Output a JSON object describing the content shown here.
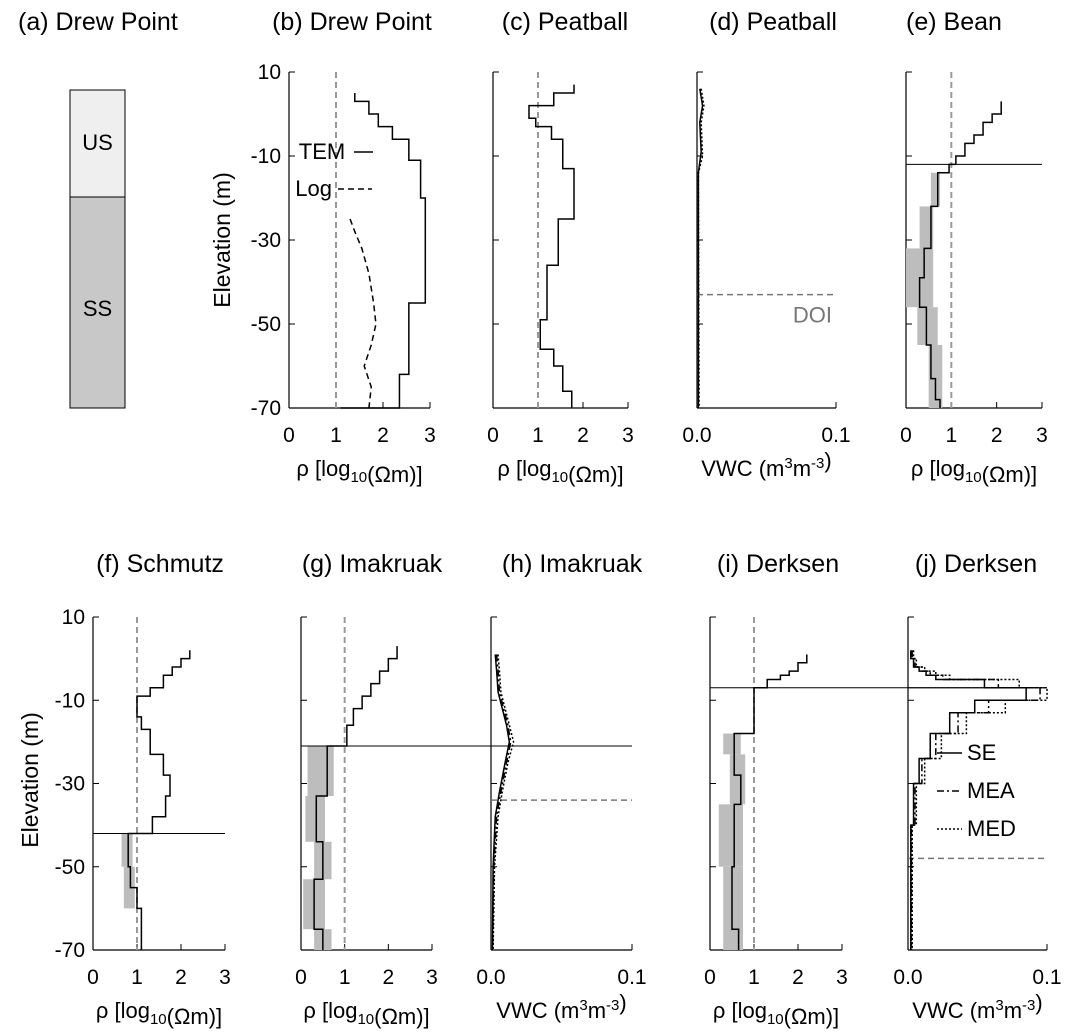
{
  "figure": {
    "ylabel": "Elevation (m)",
    "rho_label": "ρ [log10(Ωm)]",
    "vwc_label": "VWC (m3m-3)",
    "y_ticks": [
      "10",
      "-10",
      "-30",
      "-50",
      "-70"
    ],
    "rho_ticks": [
      "0",
      "1",
      "2",
      "3"
    ],
    "vwc_ticks": [
      "0.0",
      "0.1"
    ]
  },
  "chart_data": [
    {
      "panel": "(a)",
      "title": "(a) Drew Point",
      "type": "stratigraphy-column",
      "units": [
        {
          "label": "US",
          "color": "#efefef"
        },
        {
          "label": "SS",
          "color": "#c8c8c8"
        }
      ],
      "boundary_elevation": -15
    },
    {
      "panel": "(b)",
      "title": "(b) Drew Point",
      "type": "line",
      "kind": "rho",
      "xlabel": "ρ [log10(Ωm)]",
      "ylabel": "Elevation (m)",
      "xlim": [
        0,
        3
      ],
      "ylim": [
        -70,
        10
      ],
      "vref": 1,
      "legend": [
        {
          "name": "TEM",
          "style": "solid"
        },
        {
          "name": "Log",
          "style": "dashed"
        }
      ],
      "series": [
        {
          "name": "TEM",
          "style": "step",
          "x": [
            1.4,
            1.7,
            1.9,
            2.2,
            2.55,
            2.8,
            2.9,
            2.55,
            2.35,
            1.1
          ],
          "breaks": [
            5,
            3,
            0,
            -3,
            -6,
            -11,
            -20,
            -45,
            -62,
            -70
          ]
        },
        {
          "name": "Log",
          "style": "dashed",
          "points": [
            [
              1.3,
              -25
            ],
            [
              1.4,
              -28
            ],
            [
              1.55,
              -32
            ],
            [
              1.7,
              -38
            ],
            [
              1.8,
              -45
            ],
            [
              1.85,
              -50
            ],
            [
              1.75,
              -55
            ],
            [
              1.6,
              -60
            ],
            [
              1.75,
              -65
            ],
            [
              1.7,
              -70
            ]
          ]
        }
      ]
    },
    {
      "panel": "(c)",
      "title": "(c) Peatball",
      "type": "line",
      "kind": "rho",
      "xlim": [
        0,
        3
      ],
      "ylim": [
        -70,
        10
      ],
      "vref": 1,
      "series": [
        {
          "name": "TEM",
          "style": "step",
          "x": [
            1.8,
            1.35,
            0.8,
            0.95,
            1.3,
            1.55,
            1.8,
            1.45,
            1.2,
            1.05,
            1.35,
            1.55,
            1.75
          ],
          "breaks": [
            7,
            5,
            2,
            -1,
            -3,
            -6,
            -13,
            -25,
            -36,
            -49,
            -56,
            -60,
            -66,
            -70
          ]
        }
      ]
    },
    {
      "panel": "(d)",
      "title": "(d) Peatball",
      "type": "line",
      "kind": "vwc",
      "xlim": [
        0,
        0.1
      ],
      "ylim": [
        -70,
        10
      ],
      "annotations": [
        {
          "text": "DOI",
          "elevation": -43
        }
      ],
      "series": [
        {
          "name": "SE",
          "style": "solid",
          "points": [
            [
              0.002,
              6
            ],
            [
              0.004,
              2
            ],
            [
              0.002,
              -2
            ],
            [
              0.003,
              -9
            ],
            [
              0.001,
              -14
            ],
            [
              0.001,
              -70
            ]
          ]
        },
        {
          "name": "MED",
          "style": "dotted",
          "points": [
            [
              0.003,
              6
            ],
            [
              0.005,
              2
            ],
            [
              0.003,
              -2
            ],
            [
              0.004,
              -10
            ],
            [
              0.001,
              -14
            ],
            [
              0.0015,
              -70
            ]
          ]
        }
      ]
    },
    {
      "panel": "(e)",
      "title": "(e) Bean",
      "type": "line",
      "kind": "rho",
      "xlim": [
        0,
        3
      ],
      "ylim": [
        -70,
        10
      ],
      "vref": 1,
      "hline": -12,
      "series": [
        {
          "name": "TEM",
          "style": "step",
          "x": [
            2.1,
            1.9,
            1.7,
            1.5,
            1.3,
            1.1,
            0.95,
            0.7,
            0.55,
            0.4,
            0.3,
            0.45,
            0.55,
            0.65,
            0.75
          ],
          "breaks": [
            3,
            0,
            -2,
            -5,
            -7,
            -10,
            -12,
            -14,
            -22,
            -32,
            -39,
            -46,
            -55,
            -63,
            -68,
            -70
          ]
        }
      ],
      "uncertainty": [
        {
          "x1": 0.55,
          "x2": 0.75,
          "top": -14,
          "bottom": -22
        },
        {
          "x1": 0.3,
          "x2": 0.6,
          "top": -22,
          "bottom": -32
        },
        {
          "x1": 0.0,
          "x2": 0.6,
          "top": -32,
          "bottom": -46
        },
        {
          "x1": 0.25,
          "x2": 0.7,
          "top": -46,
          "bottom": -55
        },
        {
          "x1": 0.5,
          "x2": 0.8,
          "top": -55,
          "bottom": -70
        }
      ]
    },
    {
      "panel": "(f)",
      "title": "(f) Schmutz",
      "type": "line",
      "kind": "rho",
      "xlim": [
        0,
        3
      ],
      "ylim": [
        -70,
        10
      ],
      "vref": 1,
      "hline": -42,
      "series": [
        {
          "name": "TEM",
          "style": "step",
          "x": [
            2.2,
            2.0,
            1.8,
            1.6,
            1.3,
            1.0,
            1.1,
            1.3,
            1.6,
            1.75,
            1.65,
            1.35,
            0.8,
            0.85,
            1.0,
            1.1
          ],
          "breaks": [
            2,
            0,
            -2,
            -4,
            -7,
            -9,
            -14,
            -17,
            -23,
            -28,
            -33,
            -38,
            -42,
            -50,
            -55,
            -60,
            -70
          ]
        }
      ],
      "uncertainty": [
        {
          "x1": 0.65,
          "x2": 0.9,
          "top": -42,
          "bottom": -50
        },
        {
          "x1": 0.7,
          "x2": 0.95,
          "top": -50,
          "bottom": -60
        }
      ]
    },
    {
      "panel": "(g)",
      "title": "(g) Imakruak",
      "type": "line",
      "kind": "rho",
      "xlim": [
        0,
        3
      ],
      "ylim": [
        -70,
        10
      ],
      "vref": 1,
      "hline": -21,
      "series": [
        {
          "name": "TEM",
          "style": "step",
          "x": [
            2.2,
            2.0,
            1.8,
            1.6,
            1.4,
            1.2,
            1.05,
            0.6,
            0.35,
            0.5,
            0.3,
            0.5
          ],
          "breaks": [
            3,
            0,
            -3,
            -6,
            -9,
            -12,
            -16,
            -21,
            -33,
            -44,
            -53,
            -65,
            -70
          ]
        }
      ],
      "uncertainty": [
        {
          "x1": 0.15,
          "x2": 0.75,
          "top": -21,
          "bottom": -33
        },
        {
          "x1": 0.1,
          "x2": 0.55,
          "top": -33,
          "bottom": -44
        },
        {
          "x1": 0.3,
          "x2": 0.7,
          "top": -44,
          "bottom": -53
        },
        {
          "x1": 0.05,
          "x2": 0.55,
          "top": -53,
          "bottom": -65
        },
        {
          "x1": 0.3,
          "x2": 0.7,
          "top": -65,
          "bottom": -70
        }
      ]
    },
    {
      "panel": "(h)",
      "title": "(h) Imakruak",
      "type": "line",
      "kind": "vwc",
      "xlim": [
        0,
        0.1
      ],
      "ylim": [
        -70,
        10
      ],
      "hline": -21,
      "doi_elevation": -34,
      "series": [
        {
          "name": "SE",
          "style": "solid",
          "points": [
            [
              0.003,
              1
            ],
            [
              0.004,
              -3
            ],
            [
              0.005,
              -8
            ],
            [
              0.008,
              -12
            ],
            [
              0.011,
              -16
            ],
            [
              0.013,
              -20
            ],
            [
              0.01,
              -25
            ],
            [
              0.006,
              -32
            ],
            [
              0.003,
              -38
            ],
            [
              0.0015,
              -50
            ],
            [
              0.001,
              -70
            ]
          ]
        },
        {
          "name": "MEA",
          "style": "dashdot",
          "points": [
            [
              0.004,
              1
            ],
            [
              0.005,
              -3
            ],
            [
              0.006,
              -8
            ],
            [
              0.009,
              -12
            ],
            [
              0.012,
              -16
            ],
            [
              0.014,
              -20
            ],
            [
              0.011,
              -25
            ],
            [
              0.007,
              -32
            ],
            [
              0.004,
              -38
            ],
            [
              0.002,
              -50
            ],
            [
              0.0012,
              -70
            ]
          ]
        },
        {
          "name": "MED",
          "style": "dotted",
          "points": [
            [
              0.005,
              1
            ],
            [
              0.006,
              -3
            ],
            [
              0.007,
              -8
            ],
            [
              0.01,
              -12
            ],
            [
              0.013,
              -16
            ],
            [
              0.016,
              -20
            ],
            [
              0.012,
              -25
            ],
            [
              0.008,
              -32
            ],
            [
              0.005,
              -38
            ],
            [
              0.0025,
              -50
            ],
            [
              0.0015,
              -70
            ]
          ]
        }
      ]
    },
    {
      "panel": "(i)",
      "title": "(i) Derksen",
      "type": "line",
      "kind": "rho",
      "xlim": [
        0,
        3
      ],
      "ylim": [
        -70,
        10
      ],
      "vref": 1,
      "hline": -7,
      "series": [
        {
          "name": "TEM",
          "style": "step",
          "x": [
            2.2,
            2.0,
            1.8,
            1.6,
            1.3,
            1.0,
            0.55,
            0.7,
            0.55,
            0.5,
            0.65
          ],
          "breaks": [
            1,
            -1,
            -3,
            -4,
            -5,
            -7,
            -18,
            -28,
            -35,
            -50,
            -65,
            -70
          ]
        }
      ],
      "uncertainty": [
        {
          "x1": 0.3,
          "x2": 0.7,
          "top": -18,
          "bottom": -23
        },
        {
          "x1": 0.45,
          "x2": 0.8,
          "top": -23,
          "bottom": -35
        },
        {
          "x1": 0.2,
          "x2": 0.75,
          "top": -35,
          "bottom": -50
        },
        {
          "x1": 0.3,
          "x2": 0.75,
          "top": -50,
          "bottom": -70
        }
      ]
    },
    {
      "panel": "(j)",
      "title": "(j) Derksen",
      "type": "line",
      "kind": "vwc",
      "xlim": [
        0,
        0.1
      ],
      "ylim": [
        -70,
        10
      ],
      "hline": -7,
      "doi_elevation": -48,
      "legend": [
        {
          "name": "SE",
          "style": "solid"
        },
        {
          "name": "MEA",
          "style": "dashdot"
        },
        {
          "name": "MED",
          "style": "dotted"
        }
      ],
      "series": [
        {
          "name": "SE",
          "style": "step",
          "x": [
            0.002,
            0.004,
            0.008,
            0.013,
            0.02,
            0.055,
            0.085,
            0.048,
            0.03,
            0.016,
            0.008,
            0.004,
            0.002
          ],
          "breaks": [
            2,
            0,
            -2,
            -3,
            -4,
            -5,
            -7,
            -10,
            -13,
            -18,
            -24,
            -30,
            -40,
            -70
          ]
        },
        {
          "name": "MEA",
          "style": "step",
          "x": [
            0.003,
            0.005,
            0.01,
            0.016,
            0.025,
            0.065,
            0.095,
            0.058,
            0.036,
            0.02,
            0.01,
            0.005,
            0.0025
          ],
          "breaks": [
            2,
            0,
            -2,
            -3,
            -4,
            -5,
            -7,
            -10,
            -13,
            -18,
            -24,
            -30,
            -40,
            -70
          ]
        },
        {
          "name": "MED",
          "style": "step",
          "x": [
            0.004,
            0.006,
            0.012,
            0.02,
            0.03,
            0.08,
            0.1,
            0.07,
            0.042,
            0.024,
            0.012,
            0.006,
            0.003
          ],
          "breaks": [
            2,
            0,
            -2,
            -3,
            -4,
            -5,
            -7,
            -10,
            -13,
            -18,
            -24,
            -30,
            -40,
            -70
          ]
        }
      ]
    }
  ]
}
